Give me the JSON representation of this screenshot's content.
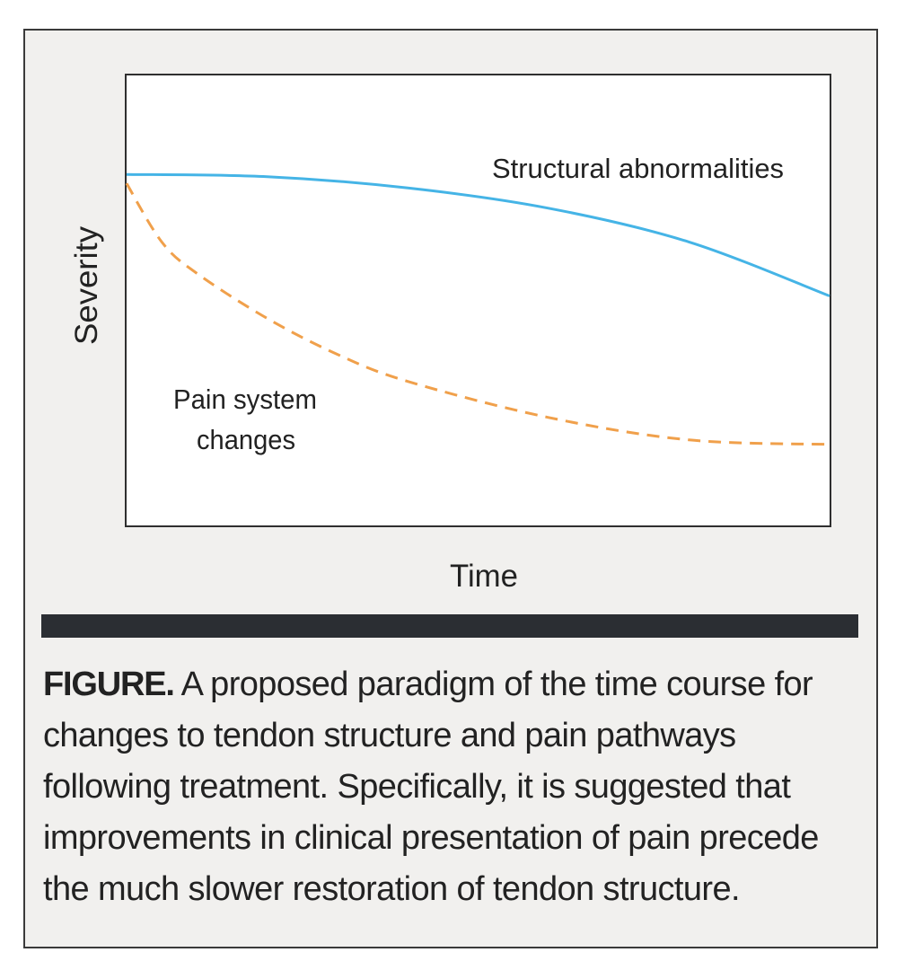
{
  "chart_data": {
    "type": "line",
    "title": "",
    "xlabel": "Time",
    "ylabel": "Severity",
    "xlim": [
      0,
      100
    ],
    "ylim": [
      0,
      100
    ],
    "grid": false,
    "x_ticks": [],
    "y_ticks": [],
    "series": [
      {
        "name": "Structural abnormalities",
        "color": "#45b4e6",
        "line_style": "solid",
        "x": [
          0,
          20,
          40,
          60,
          80,
          100
        ],
        "y": [
          78,
          77.5,
          75,
          70.5,
          63,
          51
        ]
      },
      {
        "name": "Pain system changes",
        "color": "#f0a04b",
        "line_style": "dashed",
        "x": [
          0,
          5,
          10,
          20,
          30,
          40,
          60,
          80,
          100
        ],
        "y": [
          76,
          63,
          56,
          46,
          38,
          32,
          24,
          19,
          18
        ]
      }
    ],
    "annotations": [
      {
        "text": "Structural abnormalities",
        "series": 0
      },
      {
        "lines": [
          "Pain system",
          "changes"
        ],
        "series": 1
      }
    ]
  },
  "caption": {
    "label": "FIGURE.",
    "text": " A proposed paradigm of the time course for changes to tendon structure and pain pathways following treatment. Specifically, it is suggested that improvements in clinical presentation of pain precede the much slower restoration of tendon structure."
  },
  "colors": {
    "panel_background": "#f1f0ee",
    "plot_background": "#ffffff",
    "caption_bar": "#2b2e33"
  }
}
